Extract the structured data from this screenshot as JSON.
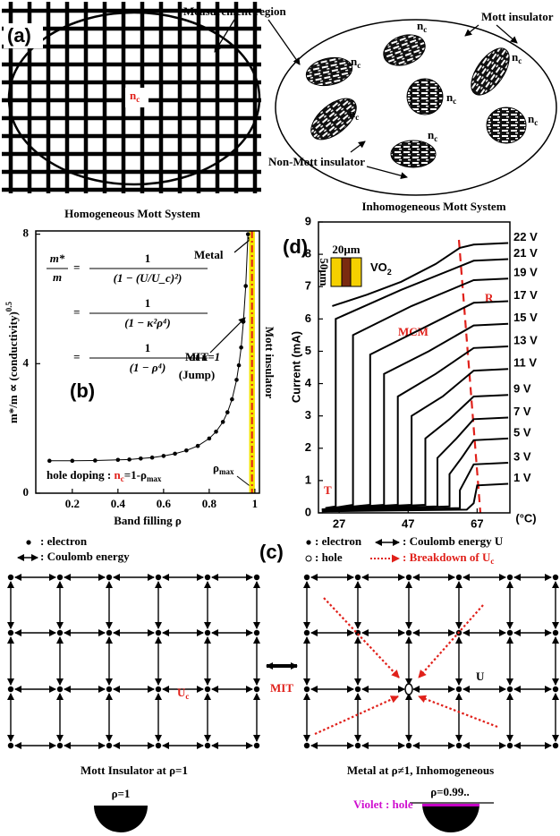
{
  "panel_a": {
    "label": "(a)",
    "measurement_region": "Measurement region",
    "nc": {
      "base": "n",
      "sub": "c"
    },
    "mott_insulator": "Mott insulator",
    "non_mott_insulator": "Non-Mott insulator",
    "caption_left": "Homogeneous Mott System",
    "caption_right": "Inhomogeneous Mott System"
  },
  "chart_data": [
    {
      "type": "line",
      "panel_label": "(b)",
      "x_label": "Band filling ρ",
      "y_label": "m*/m ∝ (conductivity)",
      "y_label_exp": "0.5",
      "x": [
        0.1,
        0.2,
        0.3,
        0.4,
        0.45,
        0.5,
        0.55,
        0.6,
        0.65,
        0.7,
        0.75,
        0.8,
        0.83,
        0.86,
        0.88,
        0.9,
        0.92,
        0.93,
        0.94,
        0.95,
        0.96,
        0.97
      ],
      "values": [
        1.0,
        1.0,
        1.01,
        1.03,
        1.04,
        1.07,
        1.1,
        1.15,
        1.22,
        1.32,
        1.46,
        1.69,
        1.9,
        2.2,
        2.5,
        2.9,
        3.5,
        3.95,
        4.5,
        5.3,
        6.4,
        8.0
      ],
      "color": "#000000",
      "marker": true,
      "xlim": [
        0.04,
        1.02
      ],
      "ylim": [
        0,
        8.1
      ],
      "xticks": [
        0.2,
        0.4,
        0.6,
        0.8,
        1
      ],
      "yticks": [
        0,
        4,
        8
      ],
      "mott_region": [
        0.975,
        1.0
      ],
      "mott_region_color": "#f5e400",
      "equations": [
        {
          "lhs_num": "m*",
          "lhs_den": "m",
          "eq": "=",
          "num": "1",
          "den": "(1 − (U/U_c)²)"
        },
        {
          "eq": "=",
          "num": "1",
          "den": "(1 − κ²ρ⁴)"
        },
        {
          "eq": "=",
          "num": "1",
          "den": "(1 − ρ⁴)",
          "note": "at κ=1"
        }
      ],
      "metal": "Metal",
      "mit": "MIT",
      "jump": "(Jump)",
      "mott_insulator": "Mott insulator",
      "hole_doping": {
        "prefix": "hole doping : ",
        "n": "n",
        "n_sub": "c",
        "rest": "=1-ρ",
        "rest_sub": "max"
      },
      "rho_max": {
        "base": "ρ",
        "sub": "max"
      }
    },
    {
      "type": "line",
      "panel_label": "(d)",
      "y_label": "Current (mA)",
      "x_unit": "(°C)",
      "xlim": [
        21,
        76.5
      ],
      "ylim": [
        0,
        9
      ],
      "xticks": [
        27,
        47,
        67
      ],
      "yticks": [
        0,
        1,
        2,
        3,
        4,
        5,
        6,
        7,
        8,
        9
      ],
      "inset": {
        "material": "VO",
        "material_sub": "2",
        "width": "20μm",
        "length": "50μm"
      },
      "mcm": "MCM",
      "r": "R",
      "t": "T",
      "series": [
        {
          "name": "22 V",
          "color": "#000000",
          "x": [
            25,
            35,
            45,
            55,
            62,
            66,
            76
          ],
          "values": [
            6.4,
            6.75,
            7.15,
            7.7,
            8.2,
            8.3,
            8.35
          ]
        },
        {
          "name": "21 V",
          "color": "#000000",
          "x": [
            23,
            26,
            26,
            45,
            66,
            76
          ],
          "values": [
            0.15,
            0.2,
            6.0,
            6.9,
            7.8,
            7.85
          ]
        },
        {
          "name": "19 V",
          "color": "#000000",
          "x": [
            22,
            31,
            31,
            48,
            66,
            76
          ],
          "values": [
            0.1,
            0.25,
            5.5,
            6.4,
            7.2,
            7.25
          ]
        },
        {
          "name": "17 V",
          "color": "#000000",
          "x": [
            22,
            36,
            36,
            51,
            66,
            76
          ],
          "values": [
            0.1,
            0.25,
            4.9,
            5.7,
            6.5,
            6.55
          ]
        },
        {
          "name": "15 V",
          "color": "#000000",
          "x": [
            22,
            40,
            40,
            53,
            66,
            76
          ],
          "values": [
            0.1,
            0.25,
            4.3,
            5.0,
            5.8,
            5.85
          ]
        },
        {
          "name": "13 V",
          "color": "#000000",
          "x": [
            22,
            44,
            44,
            55,
            66,
            76
          ],
          "values": [
            0.1,
            0.25,
            3.6,
            4.3,
            5.1,
            5.15
          ]
        },
        {
          "name": "11 V",
          "color": "#000000",
          "x": [
            22,
            48,
            48,
            57,
            66,
            76
          ],
          "values": [
            0.1,
            0.25,
            3.0,
            3.6,
            4.4,
            4.45
          ]
        },
        {
          "name": "9 V",
          "color": "#000000",
          "x": [
            22,
            52,
            52,
            59,
            66,
            76
          ],
          "values": [
            0.1,
            0.25,
            2.3,
            2.9,
            3.6,
            3.65
          ]
        },
        {
          "name": "7 V",
          "color": "#000000",
          "x": [
            22,
            55.5,
            55.5,
            61,
            66,
            76
          ],
          "values": [
            0.1,
            0.2,
            1.7,
            2.3,
            2.9,
            2.95
          ]
        },
        {
          "name": "5 V",
          "color": "#000000",
          "x": [
            22,
            59,
            59,
            62.5,
            66,
            76
          ],
          "values": [
            0.05,
            0.2,
            1.2,
            1.7,
            2.25,
            2.3
          ]
        },
        {
          "name": "3 V",
          "color": "#000000",
          "x": [
            22,
            62,
            62,
            64,
            66,
            76
          ],
          "values": [
            0.05,
            0.15,
            0.7,
            1.1,
            1.5,
            1.55
          ]
        },
        {
          "name": "1 V",
          "color": "#000000",
          "x": [
            22,
            64,
            66,
            67,
            76
          ],
          "values": [
            0.05,
            0.1,
            0.3,
            0.85,
            0.9
          ]
        }
      ]
    }
  ],
  "panel_c": {
    "label": "(c)",
    "legend_left": [
      ": electron",
      ": Coulomb energy"
    ],
    "legend_right": {
      "electron": ": electron",
      "coulomb": ": Coulomb energy U",
      "hole": ": hole",
      "breakdown": ": Breakdown of U",
      "breakdown_sub": "c"
    },
    "uc": {
      "base": "U",
      "sub": "c"
    },
    "mit": "MIT",
    "u": "U",
    "caption_left": "Mott Insulator at ρ=1",
    "caption_right": "Metal at ρ≠1, Inhomogeneous",
    "rho_left": "ρ=1",
    "rho_right": "ρ=0.99..",
    "violet_hole": "Violet : hole"
  }
}
